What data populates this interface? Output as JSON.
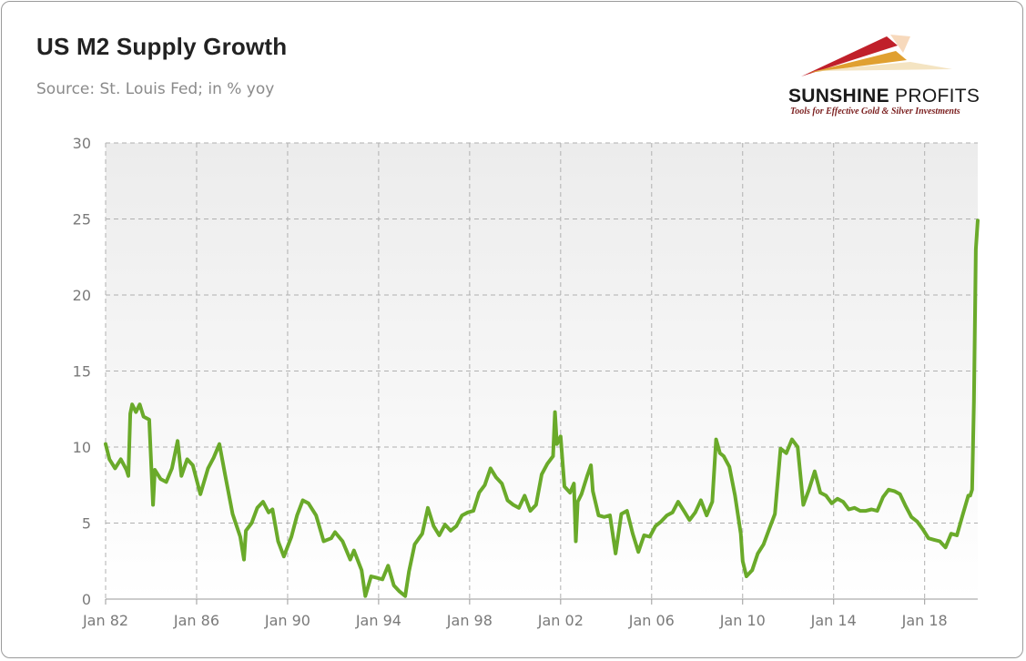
{
  "header": {
    "title": "US M2 Supply Growth",
    "subtitle": "Source: St. Louis Fed; in % yoy"
  },
  "logo": {
    "name_bold": "SUNSHINE",
    "name_thin": " PROFITS",
    "tagline": "Tools for Effective Gold & Silver Investments"
  },
  "colors": {
    "line": "#6aaa2a",
    "grid": "#b0b0b0",
    "logo_red": "#c0202a",
    "logo_gold": "#e0a030"
  },
  "chart_data": {
    "type": "line",
    "title": "US M2 Supply Growth",
    "subtitle": "Source: St. Louis Fed; in % yoy",
    "xlabel": "",
    "ylabel": "",
    "ylim": [
      0,
      30
    ],
    "xlim": [
      "1982-01",
      "2020-05"
    ],
    "yticks": [
      0,
      5,
      10,
      15,
      20,
      25,
      30
    ],
    "xticks": [
      {
        "date": "1982-01",
        "label": "Jan 82"
      },
      {
        "date": "1986-01",
        "label": "Jan 86"
      },
      {
        "date": "1990-01",
        "label": "Jan 90"
      },
      {
        "date": "1994-01",
        "label": "Jan 94"
      },
      {
        "date": "1998-01",
        "label": "Jan 98"
      },
      {
        "date": "2002-01",
        "label": "Jan 02"
      },
      {
        "date": "2006-01",
        "label": "Jan 06"
      },
      {
        "date": "2010-01",
        "label": "Jan 10"
      },
      {
        "date": "2014-01",
        "label": "Jan 14"
      },
      {
        "date": "2018-01",
        "label": "Jan 18"
      }
    ],
    "grid": true,
    "legend": "none",
    "series": [
      {
        "points": [
          [
            "1982-01",
            10.2
          ],
          [
            "1982-03",
            9.2
          ],
          [
            "1982-06",
            8.6
          ],
          [
            "1982-09",
            9.2
          ],
          [
            "1982-12",
            8.5
          ],
          [
            "1983-01",
            8.1
          ],
          [
            "1983-02",
            12.2
          ],
          [
            "1983-03",
            12.8
          ],
          [
            "1983-05",
            12.3
          ],
          [
            "1983-07",
            12.8
          ],
          [
            "1983-09",
            12.0
          ],
          [
            "1983-12",
            11.8
          ],
          [
            "1984-02",
            6.2
          ],
          [
            "1984-03",
            8.5
          ],
          [
            "1984-06",
            7.9
          ],
          [
            "1984-09",
            7.7
          ],
          [
            "1984-12",
            8.6
          ],
          [
            "1985-03",
            10.4
          ],
          [
            "1985-05",
            8.1
          ],
          [
            "1985-08",
            9.2
          ],
          [
            "1985-11",
            8.8
          ],
          [
            "1986-03",
            6.9
          ],
          [
            "1986-07",
            8.6
          ],
          [
            "1986-10",
            9.3
          ],
          [
            "1987-01",
            10.2
          ],
          [
            "1987-04",
            8.2
          ],
          [
            "1987-08",
            5.6
          ],
          [
            "1987-12",
            4.1
          ],
          [
            "1988-02",
            2.6
          ],
          [
            "1988-03",
            4.5
          ],
          [
            "1988-06",
            5.0
          ],
          [
            "1988-09",
            6.0
          ],
          [
            "1988-12",
            6.4
          ],
          [
            "1989-03",
            5.7
          ],
          [
            "1989-05",
            5.9
          ],
          [
            "1989-08",
            3.8
          ],
          [
            "1989-11",
            2.8
          ],
          [
            "1990-03",
            4.1
          ],
          [
            "1990-06",
            5.5
          ],
          [
            "1990-09",
            6.5
          ],
          [
            "1990-12",
            6.3
          ],
          [
            "1991-04",
            5.5
          ],
          [
            "1991-08",
            3.8
          ],
          [
            "1991-12",
            4.0
          ],
          [
            "1992-02",
            4.4
          ],
          [
            "1992-06",
            3.8
          ],
          [
            "1992-10",
            2.6
          ],
          [
            "1992-12",
            3.2
          ],
          [
            "1993-04",
            1.9
          ],
          [
            "1993-06",
            0.2
          ],
          [
            "1993-09",
            1.5
          ],
          [
            "1993-12",
            1.4
          ],
          [
            "1994-03",
            1.3
          ],
          [
            "1994-06",
            2.2
          ],
          [
            "1994-09",
            0.9
          ],
          [
            "1994-12",
            0.5
          ],
          [
            "1995-03",
            0.2
          ],
          [
            "1995-05",
            1.8
          ],
          [
            "1995-08",
            3.6
          ],
          [
            "1995-12",
            4.3
          ],
          [
            "1996-03",
            6.0
          ],
          [
            "1996-06",
            4.8
          ],
          [
            "1996-09",
            4.2
          ],
          [
            "1996-12",
            4.9
          ],
          [
            "1997-03",
            4.5
          ],
          [
            "1997-06",
            4.8
          ],
          [
            "1997-09",
            5.5
          ],
          [
            "1997-12",
            5.7
          ],
          [
            "1998-03",
            5.8
          ],
          [
            "1998-06",
            7.0
          ],
          [
            "1998-09",
            7.5
          ],
          [
            "1998-12",
            8.6
          ],
          [
            "1999-03",
            8.0
          ],
          [
            "1999-06",
            7.6
          ],
          [
            "1999-09",
            6.5
          ],
          [
            "1999-12",
            6.2
          ],
          [
            "2000-03",
            6.0
          ],
          [
            "2000-06",
            6.8
          ],
          [
            "2000-09",
            5.8
          ],
          [
            "2000-12",
            6.2
          ],
          [
            "2001-03",
            8.2
          ],
          [
            "2001-06",
            8.9
          ],
          [
            "2001-09",
            9.4
          ],
          [
            "2001-10",
            12.3
          ],
          [
            "2001-11",
            10.2
          ],
          [
            "2002-01",
            10.7
          ],
          [
            "2002-03",
            7.4
          ],
          [
            "2002-06",
            7.0
          ],
          [
            "2002-08",
            7.6
          ],
          [
            "2002-09",
            3.8
          ],
          [
            "2002-10",
            6.4
          ],
          [
            "2002-12",
            6.9
          ],
          [
            "2003-03",
            8.1
          ],
          [
            "2003-05",
            8.8
          ],
          [
            "2003-06",
            7.1
          ],
          [
            "2003-09",
            5.5
          ],
          [
            "2003-12",
            5.4
          ],
          [
            "2004-03",
            5.5
          ],
          [
            "2004-06",
            3.0
          ],
          [
            "2004-09",
            5.6
          ],
          [
            "2004-12",
            5.8
          ],
          [
            "2005-03",
            4.3
          ],
          [
            "2005-06",
            3.1
          ],
          [
            "2005-09",
            4.2
          ],
          [
            "2005-12",
            4.1
          ],
          [
            "2006-03",
            4.8
          ],
          [
            "2006-06",
            5.1
          ],
          [
            "2006-09",
            5.5
          ],
          [
            "2006-12",
            5.7
          ],
          [
            "2007-03",
            6.4
          ],
          [
            "2007-06",
            5.8
          ],
          [
            "2007-09",
            5.2
          ],
          [
            "2007-12",
            5.7
          ],
          [
            "2008-03",
            6.5
          ],
          [
            "2008-06",
            5.5
          ],
          [
            "2008-09",
            6.4
          ],
          [
            "2008-11",
            10.5
          ],
          [
            "2009-01",
            9.6
          ],
          [
            "2009-03",
            9.4
          ],
          [
            "2009-06",
            8.7
          ],
          [
            "2009-09",
            6.8
          ],
          [
            "2009-12",
            4.3
          ],
          [
            "2010-01",
            2.5
          ],
          [
            "2010-03",
            1.5
          ],
          [
            "2010-06",
            1.9
          ],
          [
            "2010-09",
            3.0
          ],
          [
            "2010-12",
            3.6
          ],
          [
            "2011-03",
            4.6
          ],
          [
            "2011-06",
            5.6
          ],
          [
            "2011-09",
            9.9
          ],
          [
            "2011-12",
            9.6
          ],
          [
            "2012-03",
            10.5
          ],
          [
            "2012-06",
            10.0
          ],
          [
            "2012-09",
            6.2
          ],
          [
            "2012-12",
            7.2
          ],
          [
            "2013-03",
            8.4
          ],
          [
            "2013-06",
            7.0
          ],
          [
            "2013-09",
            6.8
          ],
          [
            "2013-12",
            6.3
          ],
          [
            "2014-03",
            6.6
          ],
          [
            "2014-06",
            6.4
          ],
          [
            "2014-09",
            5.9
          ],
          [
            "2014-12",
            6.0
          ],
          [
            "2015-03",
            5.8
          ],
          [
            "2015-06",
            5.8
          ],
          [
            "2015-09",
            5.9
          ],
          [
            "2015-12",
            5.8
          ],
          [
            "2016-03",
            6.7
          ],
          [
            "2016-06",
            7.2
          ],
          [
            "2016-09",
            7.1
          ],
          [
            "2016-12",
            6.9
          ],
          [
            "2017-03",
            6.1
          ],
          [
            "2017-06",
            5.4
          ],
          [
            "2017-09",
            5.1
          ],
          [
            "2017-12",
            4.6
          ],
          [
            "2018-03",
            4.0
          ],
          [
            "2018-06",
            3.9
          ],
          [
            "2018-09",
            3.8
          ],
          [
            "2018-12",
            3.4
          ],
          [
            "2019-03",
            4.3
          ],
          [
            "2019-06",
            4.2
          ],
          [
            "2019-09",
            5.5
          ],
          [
            "2019-12",
            6.8
          ],
          [
            "2020-01",
            6.8
          ],
          [
            "2020-02",
            7.2
          ],
          [
            "2020-03",
            13.0
          ],
          [
            "2020-04",
            23.0
          ],
          [
            "2020-05",
            24.9
          ]
        ]
      }
    ]
  }
}
